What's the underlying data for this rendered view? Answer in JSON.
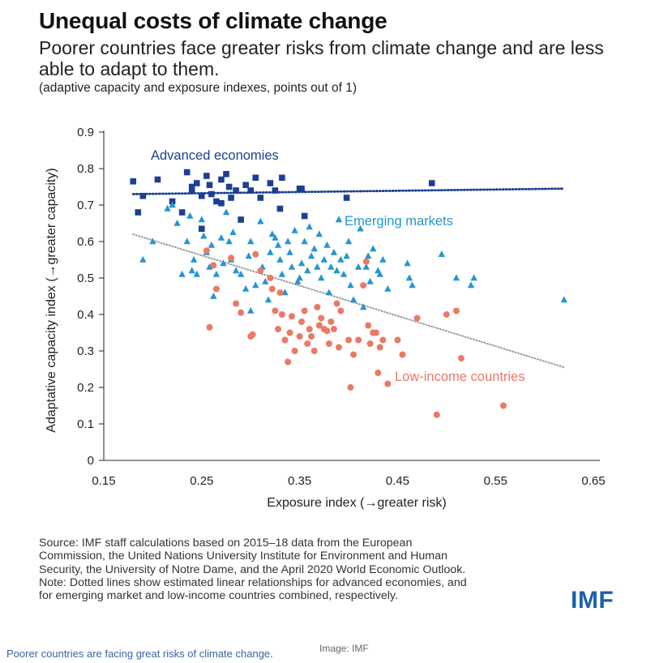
{
  "header": {
    "title": "Unequal costs of climate change",
    "subtitle": "Poorer countries face greater risks from climate change and are less able to adapt to them.",
    "note": "(adaptive capacity and exposure indexes, points out of 1)"
  },
  "chart_data": {
    "type": "scatter",
    "xlabel": "Exposure index (→greater risk)",
    "ylabel": "Adaptative capacity index (→greater capacity)",
    "xlim": [
      0.15,
      0.65
    ],
    "ylim": [
      0,
      0.9
    ],
    "xticks": [
      "0.15",
      "0.25",
      "0.35",
      "0.45",
      "0.55",
      "0.65"
    ],
    "yticks": [
      "0",
      "0.1",
      "0.2",
      "0.3",
      "0.4",
      "0.5",
      "0.6",
      "0.7",
      "0.8",
      "0.9"
    ],
    "series": [
      {
        "name": "Advanced economies",
        "marker": "square",
        "color": "#1c3f94",
        "points": [
          [
            0.18,
            0.765
          ],
          [
            0.185,
            0.68
          ],
          [
            0.19,
            0.725
          ],
          [
            0.205,
            0.77
          ],
          [
            0.22,
            0.71
          ],
          [
            0.23,
            0.68
          ],
          [
            0.235,
            0.79
          ],
          [
            0.24,
            0.74
          ],
          [
            0.24,
            0.75
          ],
          [
            0.245,
            0.76
          ],
          [
            0.25,
            0.635
          ],
          [
            0.25,
            0.725
          ],
          [
            0.255,
            0.78
          ],
          [
            0.258,
            0.755
          ],
          [
            0.26,
            0.73
          ],
          [
            0.265,
            0.71
          ],
          [
            0.27,
            0.77
          ],
          [
            0.27,
            0.705
          ],
          [
            0.275,
            0.785
          ],
          [
            0.278,
            0.75
          ],
          [
            0.28,
            0.72
          ],
          [
            0.285,
            0.74
          ],
          [
            0.29,
            0.66
          ],
          [
            0.295,
            0.755
          ],
          [
            0.3,
            0.74
          ],
          [
            0.305,
            0.775
          ],
          [
            0.31,
            0.72
          ],
          [
            0.32,
            0.76
          ],
          [
            0.325,
            0.74
          ],
          [
            0.33,
            0.69
          ],
          [
            0.332,
            0.775
          ],
          [
            0.352,
            0.745
          ],
          [
            0.355,
            0.67
          ],
          [
            0.35,
            0.745
          ],
          [
            0.398,
            0.72
          ],
          [
            0.485,
            0.76
          ]
        ],
        "trend": [
          [
            0.18,
            0.73
          ],
          [
            0.62,
            0.745
          ]
        ]
      },
      {
        "name": "Emerging markets",
        "marker": "triangle",
        "color": "#2596cf",
        "points": [
          [
            0.19,
            0.55
          ],
          [
            0.2,
            0.6
          ],
          [
            0.215,
            0.69
          ],
          [
            0.22,
            0.7
          ],
          [
            0.225,
            0.65
          ],
          [
            0.23,
            0.51
          ],
          [
            0.235,
            0.6
          ],
          [
            0.238,
            0.67
          ],
          [
            0.24,
            0.52
          ],
          [
            0.242,
            0.55
          ],
          [
            0.245,
            0.51
          ],
          [
            0.25,
            0.66
          ],
          [
            0.252,
            0.615
          ],
          [
            0.255,
            0.57
          ],
          [
            0.258,
            0.53
          ],
          [
            0.26,
            0.59
          ],
          [
            0.262,
            0.45
          ],
          [
            0.265,
            0.51
          ],
          [
            0.27,
            0.61
          ],
          [
            0.272,
            0.54
          ],
          [
            0.275,
            0.68
          ],
          [
            0.278,
            0.6
          ],
          [
            0.28,
            0.55
          ],
          [
            0.282,
            0.625
          ],
          [
            0.285,
            0.52
          ],
          [
            0.29,
            0.51
          ],
          [
            0.295,
            0.47
          ],
          [
            0.298,
            0.56
          ],
          [
            0.3,
            0.6
          ],
          [
            0.3,
            0.41
          ],
          [
            0.305,
            0.48
          ],
          [
            0.31,
            0.655
          ],
          [
            0.312,
            0.53
          ],
          [
            0.315,
            0.49
          ],
          [
            0.318,
            0.44
          ],
          [
            0.32,
            0.57
          ],
          [
            0.322,
            0.62
          ],
          [
            0.325,
            0.61
          ],
          [
            0.328,
            0.59
          ],
          [
            0.33,
            0.55
          ],
          [
            0.332,
            0.51
          ],
          [
            0.335,
            0.46
          ],
          [
            0.338,
            0.6
          ],
          [
            0.34,
            0.57
          ],
          [
            0.342,
            0.53
          ],
          [
            0.345,
            0.63
          ],
          [
            0.348,
            0.49
          ],
          [
            0.35,
            0.5
          ],
          [
            0.352,
            0.54
          ],
          [
            0.355,
            0.6
          ],
          [
            0.358,
            0.52
          ],
          [
            0.36,
            0.64
          ],
          [
            0.362,
            0.56
          ],
          [
            0.365,
            0.58
          ],
          [
            0.368,
            0.53
          ],
          [
            0.37,
            0.62
          ],
          [
            0.372,
            0.5
          ],
          [
            0.375,
            0.55
          ],
          [
            0.378,
            0.59
          ],
          [
            0.38,
            0.46
          ],
          [
            0.382,
            0.53
          ],
          [
            0.385,
            0.57
          ],
          [
            0.388,
            0.52
          ],
          [
            0.39,
            0.66
          ],
          [
            0.392,
            0.55
          ],
          [
            0.395,
            0.51
          ],
          [
            0.398,
            0.56
          ],
          [
            0.4,
            0.6
          ],
          [
            0.402,
            0.48
          ],
          [
            0.405,
            0.44
          ],
          [
            0.41,
            0.53
          ],
          [
            0.412,
            0.635
          ],
          [
            0.415,
            0.42
          ],
          [
            0.418,
            0.53
          ],
          [
            0.42,
            0.56
          ],
          [
            0.422,
            0.49
          ],
          [
            0.425,
            0.58
          ],
          [
            0.43,
            0.52
          ],
          [
            0.432,
            0.51
          ],
          [
            0.435,
            0.55
          ],
          [
            0.44,
            0.47
          ],
          [
            0.46,
            0.54
          ],
          [
            0.462,
            0.5
          ],
          [
            0.465,
            0.48
          ],
          [
            0.495,
            0.565
          ],
          [
            0.51,
            0.5
          ],
          [
            0.525,
            0.48
          ],
          [
            0.528,
            0.5
          ],
          [
            0.62,
            0.44
          ]
        ]
      },
      {
        "name": "Low-income countries",
        "marker": "circle",
        "color": "#ea7a66",
        "points": [
          [
            0.255,
            0.575
          ],
          [
            0.258,
            0.365
          ],
          [
            0.262,
            0.535
          ],
          [
            0.265,
            0.47
          ],
          [
            0.28,
            0.555
          ],
          [
            0.285,
            0.43
          ],
          [
            0.29,
            0.405
          ],
          [
            0.3,
            0.34
          ],
          [
            0.302,
            0.345
          ],
          [
            0.305,
            0.565
          ],
          [
            0.31,
            0.52
          ],
          [
            0.32,
            0.5
          ],
          [
            0.322,
            0.47
          ],
          [
            0.325,
            0.41
          ],
          [
            0.328,
            0.36
          ],
          [
            0.33,
            0.46
          ],
          [
            0.332,
            0.4
          ],
          [
            0.335,
            0.33
          ],
          [
            0.338,
            0.27
          ],
          [
            0.34,
            0.35
          ],
          [
            0.342,
            0.395
          ],
          [
            0.345,
            0.3
          ],
          [
            0.35,
            0.34
          ],
          [
            0.352,
            0.38
          ],
          [
            0.355,
            0.41
          ],
          [
            0.358,
            0.32
          ],
          [
            0.36,
            0.36
          ],
          [
            0.362,
            0.34
          ],
          [
            0.365,
            0.3
          ],
          [
            0.368,
            0.42
          ],
          [
            0.37,
            0.37
          ],
          [
            0.372,
            0.39
          ],
          [
            0.375,
            0.36
          ],
          [
            0.378,
            0.355
          ],
          [
            0.38,
            0.32
          ],
          [
            0.382,
            0.38
          ],
          [
            0.385,
            0.36
          ],
          [
            0.388,
            0.43
          ],
          [
            0.39,
            0.31
          ],
          [
            0.392,
            0.41
          ],
          [
            0.4,
            0.33
          ],
          [
            0.402,
            0.2
          ],
          [
            0.405,
            0.29
          ],
          [
            0.41,
            0.33
          ],
          [
            0.415,
            0.48
          ],
          [
            0.418,
            0.545
          ],
          [
            0.42,
            0.37
          ],
          [
            0.422,
            0.32
          ],
          [
            0.425,
            0.35
          ],
          [
            0.428,
            0.35
          ],
          [
            0.43,
            0.24
          ],
          [
            0.432,
            0.31
          ],
          [
            0.435,
            0.33
          ],
          [
            0.44,
            0.21
          ],
          [
            0.45,
            0.33
          ],
          [
            0.455,
            0.29
          ],
          [
            0.47,
            0.39
          ],
          [
            0.49,
            0.125
          ],
          [
            0.5,
            0.4
          ],
          [
            0.51,
            0.41
          ],
          [
            0.515,
            0.28
          ],
          [
            0.558,
            0.15
          ]
        ]
      }
    ],
    "combined_trend": [
      [
        0.18,
        0.62
      ],
      [
        0.62,
        0.255
      ]
    ],
    "annotations": [
      {
        "text": "Advanced economies",
        "color": "#1c3f94"
      },
      {
        "text": "Emerging markets",
        "color": "#2596cf"
      },
      {
        "text": "Low-income countries",
        "color": "#ea7a66"
      }
    ],
    "grid": false
  },
  "source": {
    "lines": [
      "Source: IMF staff calculations based on 2015–18 data from the European",
      "Commission, the United Nations University Institute for Environment and Human",
      "Security, the University of Notre Dame, and the April 2020 World Economic Outlook.",
      "Note: Dotted lines show estimated linear relationships for advanced economies, and",
      "for emerging market and low-income countries combined, respectively."
    ]
  },
  "logo": {
    "text": "IMF",
    "color": "#1f5fa8"
  },
  "caption": {
    "text": "Poorer countries are facing great risks of climate change.",
    "credit": "Image: IMF"
  }
}
